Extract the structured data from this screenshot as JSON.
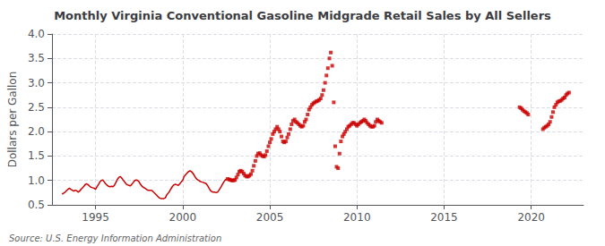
{
  "chart_data": {
    "type": "line",
    "title": "Monthly Virginia Conventional Gasoline Midgrade Retail Sales by All Sellers",
    "ylabel": "Dollars per Gallon",
    "annotations": [
      "Source: U.S. Energy Information Administration"
    ],
    "xlim": [
      1992.5,
      2023.0
    ],
    "ylim": [
      0.5,
      4.0
    ],
    "xticks": [
      1995,
      2000,
      2005,
      2010,
      2015,
      2020
    ],
    "yticks": [
      0.5,
      {
        "value": 1.0,
        "label": "1.0"
      },
      1.5,
      {
        "value": 2.0,
        "label": "2.0"
      },
      2.5,
      {
        "value": 3.0,
        "label": "3.0"
      },
      3.5,
      {
        "value": 4.0,
        "label": "4.0"
      }
    ],
    "grid": true,
    "series": [
      {
        "type": "line",
        "color": "#CC0000",
        "x": [
          1993.08,
          1993.17,
          1993.25,
          1993.33,
          1993.42,
          1993.5,
          1993.58,
          1993.67,
          1993.75,
          1993.83,
          1993.92,
          1994.0,
          1994.08,
          1994.17,
          1994.25,
          1994.33,
          1994.42,
          1994.5,
          1994.58,
          1994.67,
          1994.75,
          1994.83,
          1994.92,
          1995.0,
          1995.08,
          1995.17,
          1995.25,
          1995.33,
          1995.42,
          1995.5,
          1995.58,
          1995.67,
          1995.75,
          1995.83,
          1995.92,
          1996.0,
          1996.08,
          1996.17,
          1996.25,
          1996.33,
          1996.42,
          1996.5,
          1996.58,
          1996.67,
          1996.75,
          1996.83,
          1996.92,
          1997.0,
          1997.08,
          1997.17,
          1997.25,
          1997.33,
          1997.42,
          1997.5,
          1997.58,
          1997.67,
          1997.75,
          1997.83,
          1997.92,
          1998.0,
          1998.08,
          1998.17,
          1998.25,
          1998.33,
          1998.42,
          1998.5,
          1998.58,
          1998.67,
          1998.75,
          1998.83,
          1998.92,
          1999.0,
          1999.08,
          1999.17,
          1999.25,
          1999.33,
          1999.42,
          1999.5,
          1999.58,
          1999.67,
          1999.75,
          1999.83,
          1999.92,
          2000.0,
          2000.08,
          2000.17,
          2000.25,
          2000.33,
          2000.42,
          2000.5,
          2000.58,
          2000.67,
          2000.75,
          2000.83,
          2000.92,
          2001.0,
          2001.08,
          2001.17,
          2001.25,
          2001.33,
          2001.42,
          2001.5,
          2001.58,
          2001.67,
          2001.75,
          2001.83,
          2001.92,
          2002.0,
          2002.08,
          2002.17,
          2002.25,
          2002.33,
          2002.42,
          2002.5
        ],
        "values": [
          0.72,
          0.74,
          0.76,
          0.79,
          0.82,
          0.84,
          0.82,
          0.8,
          0.78,
          0.8,
          0.79,
          0.76,
          0.78,
          0.82,
          0.85,
          0.88,
          0.92,
          0.93,
          0.91,
          0.88,
          0.86,
          0.85,
          0.84,
          0.82,
          0.87,
          0.92,
          0.97,
          1.0,
          1.01,
          0.97,
          0.93,
          0.9,
          0.88,
          0.87,
          0.88,
          0.87,
          0.9,
          0.96,
          1.02,
          1.06,
          1.08,
          1.05,
          1.01,
          0.97,
          0.93,
          0.91,
          0.9,
          0.89,
          0.92,
          0.96,
          1.0,
          1.01,
          1.0,
          0.97,
          0.92,
          0.88,
          0.86,
          0.84,
          0.82,
          0.8,
          0.8,
          0.8,
          0.79,
          0.76,
          0.73,
          0.7,
          0.67,
          0.64,
          0.63,
          0.63,
          0.63,
          0.64,
          0.7,
          0.74,
          0.78,
          0.83,
          0.88,
          0.91,
          0.92,
          0.91,
          0.9,
          0.93,
          0.97,
          1.0,
          1.08,
          1.12,
          1.15,
          1.18,
          1.2,
          1.18,
          1.15,
          1.1,
          1.05,
          1.02,
          1.0,
          0.98,
          0.97,
          0.96,
          0.95,
          0.94,
          0.9,
          0.85,
          0.8,
          0.77,
          0.76,
          0.76,
          0.75,
          0.76,
          0.8,
          0.85,
          0.9,
          0.95,
          1.0,
          1.03
        ]
      },
      {
        "type": "scatter",
        "color": "#CC0000",
        "marker": "square",
        "x": [
          2002.58,
          2002.67,
          2002.75,
          2002.83,
          2002.92,
          2003.0,
          2003.08,
          2003.17,
          2003.25,
          2003.33,
          2003.42,
          2003.5,
          2003.58,
          2003.67,
          2003.75,
          2003.83,
          2003.92,
          2004.0,
          2004.08,
          2004.17,
          2004.25,
          2004.33,
          2004.42,
          2004.5,
          2004.58,
          2004.67,
          2004.75,
          2004.83,
          2004.92,
          2005.0,
          2005.08,
          2005.17,
          2005.25,
          2005.33,
          2005.42,
          2005.5,
          2005.58,
          2005.67,
          2005.75,
          2005.83,
          2005.92,
          2006.0,
          2006.08,
          2006.17,
          2006.25,
          2006.33,
          2006.42,
          2006.5,
          2006.58,
          2006.67,
          2006.75,
          2006.83,
          2006.92,
          2007.0,
          2007.08,
          2007.17,
          2007.25,
          2007.33,
          2007.42,
          2007.5,
          2007.58,
          2007.67,
          2007.75,
          2007.83,
          2007.92,
          2008.0,
          2008.08,
          2008.17,
          2008.25,
          2008.33,
          2008.42,
          2008.5,
          2008.58,
          2008.67,
          2008.75,
          2008.83,
          2008.92,
          2009.0,
          2009.08,
          2009.17,
          2009.25,
          2009.33,
          2009.42,
          2009.5,
          2009.58,
          2009.67,
          2009.75,
          2009.83,
          2009.92,
          2010.0,
          2010.08,
          2010.17,
          2010.25,
          2010.33,
          2010.42,
          2010.5,
          2010.58,
          2010.67,
          2010.75,
          2010.83,
          2010.92,
          2011.0,
          2011.08,
          2011.17,
          2011.25,
          2011.33,
          2011.42,
          2019.33,
          2019.42,
          2019.5,
          2019.58,
          2019.67,
          2019.75,
          2019.83,
          2020.67,
          2020.75,
          2020.83,
          2020.92,
          2021.0,
          2021.08,
          2021.17,
          2021.25,
          2021.33,
          2021.42,
          2021.5,
          2021.58,
          2021.67,
          2021.75,
          2021.83,
          2021.92,
          2022.0,
          2022.08,
          2022.17
        ],
        "values": [
          1.03,
          1.02,
          1.01,
          1.0,
          1.0,
          1.01,
          1.06,
          1.12,
          1.18,
          1.2,
          1.18,
          1.14,
          1.1,
          1.08,
          1.08,
          1.1,
          1.13,
          1.2,
          1.3,
          1.4,
          1.5,
          1.55,
          1.56,
          1.52,
          1.5,
          1.49,
          1.52,
          1.6,
          1.7,
          1.78,
          1.85,
          1.95,
          2.0,
          2.05,
          2.1,
          2.05,
          2.0,
          1.9,
          1.8,
          1.78,
          1.8,
          1.88,
          1.95,
          2.05,
          2.15,
          2.22,
          2.25,
          2.2,
          2.18,
          2.15,
          2.12,
          2.1,
          2.12,
          2.2,
          2.25,
          2.35,
          2.45,
          2.5,
          2.55,
          2.58,
          2.6,
          2.62,
          2.63,
          2.65,
          2.68,
          2.75,
          2.85,
          3.0,
          3.15,
          3.3,
          3.5,
          3.62,
          3.35,
          2.6,
          1.7,
          1.28,
          1.25,
          1.55,
          1.8,
          1.9,
          1.95,
          2.0,
          2.05,
          2.1,
          2.12,
          2.15,
          2.18,
          2.18,
          2.15,
          2.12,
          2.15,
          2.18,
          2.2,
          2.22,
          2.25,
          2.22,
          2.18,
          2.15,
          2.12,
          2.1,
          2.1,
          2.12,
          2.2,
          2.25,
          2.22,
          2.2,
          2.18,
          2.5,
          2.48,
          2.45,
          2.42,
          2.4,
          2.38,
          2.35,
          2.05,
          2.08,
          2.1,
          2.12,
          2.15,
          2.2,
          2.3,
          2.4,
          2.5,
          2.55,
          2.6,
          2.62,
          2.63,
          2.65,
          2.68,
          2.7,
          2.75,
          2.78,
          2.8
        ]
      }
    ]
  }
}
